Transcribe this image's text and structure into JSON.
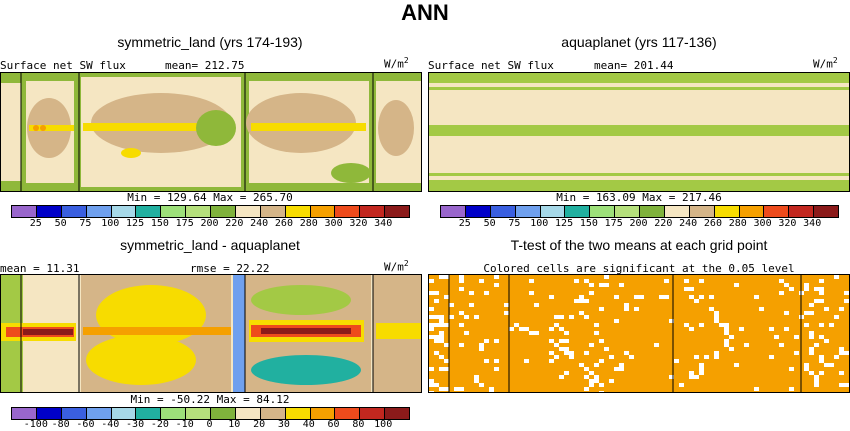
{
  "title": "ANN",
  "colors": {
    "land": "#8fb83a",
    "aqua_band": "#a3c945",
    "aqua_mid": "#f5e6c2",
    "tan": "#d5b588",
    "yellow": "#f7dc00",
    "orange": "#f5a000",
    "red": "#c2271f",
    "white": "#ffffff"
  },
  "panels": [
    {
      "title": "symmetric_land (yrs 174-193)",
      "left_label": "Surface net SW flux",
      "mean_label": "mean= 212.75",
      "units": "W/m",
      "units_sup": "2",
      "minmax": "Min = 129.64 Max = 265.70"
    },
    {
      "title": "aquaplanet (yrs 117-136)",
      "left_label": "Surface net SW flux",
      "mean_label": "mean= 201.44",
      "units": "W/m",
      "units_sup": "2",
      "minmax": "Min = 163.09 Max = 217.46"
    },
    {
      "title": "symmetric_land - aquaplanet",
      "left_label": "mean =  11.31",
      "mean_label": "rmse =  22.22",
      "units": "W/m",
      "units_sup": "2",
      "minmax": "Min = -50.22  Max =  84.12"
    },
    {
      "title": "T-test of the two means at each grid point",
      "subtitle": "Colored cells are significant at the 0.05 level"
    }
  ],
  "chart_data": [
    {
      "type": "heatmap",
      "title": "symmetric_land (yrs 174-193)",
      "subtitle": "Surface net SW flux",
      "mean": 212.75,
      "units": "W/m^2",
      "min": 129.64,
      "max": 265.7,
      "colorbar_levels": [
        25,
        50,
        75,
        100,
        125,
        150,
        175,
        200,
        220,
        240,
        260,
        280,
        300,
        320,
        340
      ],
      "colorbar_labels": [
        "25",
        "50",
        "75",
        "100",
        "125",
        "150",
        "175",
        "200",
        "220",
        "240",
        "260",
        "280",
        "300",
        "320",
        "340"
      ],
      "colorbar_colors": [
        "#9966cc",
        "#0000c8",
        "#3a5fe0",
        "#6fa0ee",
        "#a6d8e8",
        "#21b0a0",
        "#9de07a",
        "#b5e07c",
        "#7fb23c",
        "#f5e6c2",
        "#d5b588",
        "#f7dc00",
        "#f5a000",
        "#ee4b1c",
        "#c2271f",
        "#8b1a1a",
        "#f7a8c0",
        "#ee1ca8"
      ]
    },
    {
      "type": "heatmap",
      "title": "aquaplanet (yrs 117-136)",
      "subtitle": "Surface net SW flux",
      "mean": 201.44,
      "units": "W/m^2",
      "min": 163.09,
      "max": 217.46,
      "colorbar_levels": [
        25,
        50,
        75,
        100,
        125,
        150,
        175,
        200,
        220,
        240,
        260,
        280,
        300,
        320,
        340
      ],
      "colorbar_labels": [
        "25",
        "50",
        "75",
        "100",
        "125",
        "150",
        "175",
        "200",
        "220",
        "240",
        "260",
        "280",
        "300",
        "320",
        "340"
      ]
    },
    {
      "type": "heatmap",
      "title": "symmetric_land - aquaplanet",
      "mean": 11.31,
      "rmse": 22.22,
      "units": "W/m^2",
      "min": -50.22,
      "max": 84.12,
      "colorbar_levels": [
        -100,
        -80,
        -60,
        -40,
        -30,
        -20,
        -10,
        0,
        10,
        20,
        30,
        40,
        60,
        80,
        100
      ],
      "colorbar_labels": [
        "-100",
        "-80",
        "-60",
        "-40",
        "-30",
        "-20",
        "-10",
        "0",
        "10",
        "20",
        "30",
        "40",
        "60",
        "80",
        "100"
      ],
      "colorbar_colors": [
        "#9966cc",
        "#0000c8",
        "#3a5fe0",
        "#6fa0ee",
        "#a6d8e8",
        "#21b0a0",
        "#9de07a",
        "#b5e07c",
        "#7fb23c",
        "#f5e6c2",
        "#d5b588",
        "#f7dc00",
        "#f5a000",
        "#ee4b1c",
        "#c2271f",
        "#8b1a1a",
        "#f7a8c0",
        "#ee1ca8"
      ]
    },
    {
      "type": "heatmap",
      "title": "T-test of the two means at each grid point",
      "subtitle": "Colored cells are significant at the 0.05 level",
      "significant_color": "#f5a000"
    }
  ]
}
